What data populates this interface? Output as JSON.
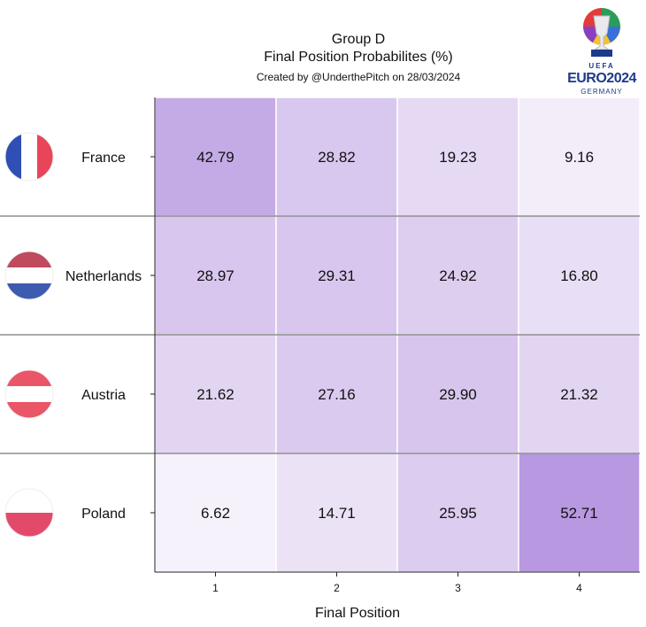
{
  "chart_data": {
    "type": "heatmap",
    "title": "Group D",
    "subtitle": "Final Position Probabilites (%)",
    "credit": "Created by @UnderthePitch on 28/03/2024",
    "xlabel": "Final Position",
    "x_categories": [
      "1",
      "2",
      "3",
      "4"
    ],
    "rows": [
      {
        "team": "France",
        "flag": "france-flag",
        "values": [
          "42.79",
          "28.82",
          "19.23",
          "9.16"
        ]
      },
      {
        "team": "Netherlands",
        "flag": "netherlands-flag",
        "values": [
          "28.97",
          "29.31",
          "24.92",
          "16.80"
        ]
      },
      {
        "team": "Austria",
        "flag": "austria-flag",
        "values": [
          "21.62",
          "27.16",
          "29.90",
          "21.32"
        ]
      },
      {
        "team": "Poland",
        "flag": "poland-flag",
        "values": [
          "6.62",
          "14.71",
          "25.95",
          "52.71"
        ]
      }
    ],
    "color_min": "#ffffff",
    "color_max": "#b898e0"
  },
  "logo": {
    "uefa": "UEFA",
    "euro": "EURO2024",
    "country": "GERMANY"
  }
}
